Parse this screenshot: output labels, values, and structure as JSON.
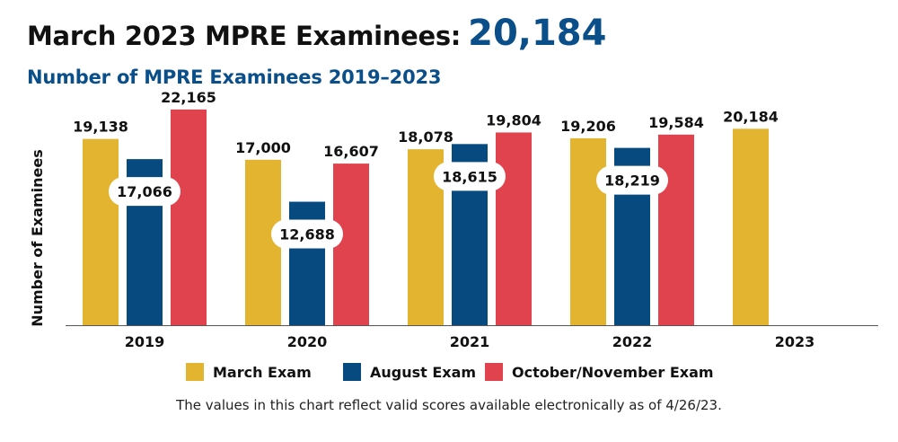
{
  "header": {
    "title": "March 2023 MPRE Examinees:",
    "title_value": "20,184",
    "subtitle": "Number of MPRE Examinees 2019–2023"
  },
  "footnote": "The values in this chart reflect valid scores available electronically as of 4/26/23.",
  "chart_data": {
    "type": "bar",
    "ylabel": "Number of Examinees",
    "categories": [
      "2019",
      "2020",
      "2021",
      "2022",
      "2023"
    ],
    "ylim": [
      0,
      24000
    ],
    "grid": false,
    "legend_position": "bottom",
    "series": [
      {
        "name": "March Exam",
        "color": "#e2b42f",
        "values": [
          19138,
          17000,
          18078,
          19206,
          20184
        ],
        "labels": [
          "19,138",
          "17,000",
          "18,078",
          "19,206",
          "20,184"
        ]
      },
      {
        "name": "August Exam",
        "color": "#064a80",
        "values": [
          17066,
          12688,
          18615,
          18219,
          null
        ],
        "labels": [
          "17,066",
          "12,688",
          "18,615",
          "18,219",
          ""
        ]
      },
      {
        "name": "October/November Exam",
        "color": "#e0434e",
        "values": [
          22165,
          16607,
          19804,
          19584,
          null
        ],
        "labels": [
          "22,165",
          "16,607",
          "19,804",
          "19,584",
          ""
        ]
      }
    ]
  }
}
